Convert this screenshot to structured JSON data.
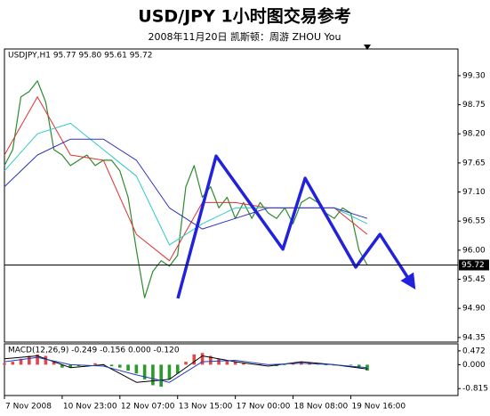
{
  "header": {
    "title": "USD/JPY 1小时图交易参考",
    "subtitle": "2008年11月20日  凯斯顿：周游 ZHOU You"
  },
  "chart_data": [
    {
      "type": "line",
      "label": "USDJPY,H1  95.77 95.80 95.61 95.72",
      "xlim": [
        0,
        165
      ],
      "ylim": [
        94.28,
        99.77
      ],
      "yticks": [
        {
          "value": 99.3,
          "label": "99.30"
        },
        98.75,
        {
          "value": 98.2,
          "label": "98.20"
        },
        97.65,
        {
          "value": 97.1,
          "label": "97.10"
        },
        96.55,
        {
          "value": 96.0,
          "label": "96.00"
        },
        95.45,
        {
          "value": 94.9,
          "label": "94.90"
        },
        94.35
      ],
      "hline": 95.72,
      "hline_color": "#000000",
      "series": [
        {
          "color": "#2e8b2e",
          "width": 1.2,
          "x": [
            0,
            3,
            6,
            9,
            12,
            15,
            18,
            21,
            24,
            27,
            30,
            33,
            36,
            39,
            42,
            45,
            48,
            51,
            54,
            57,
            60,
            63,
            66,
            69,
            72,
            75,
            78,
            81,
            84,
            87,
            90,
            93,
            96,
            99,
            102,
            105,
            108,
            111,
            114,
            117,
            120,
            123,
            126,
            129,
            132
          ],
          "values": [
            97.6,
            97.9,
            98.9,
            99.0,
            99.2,
            98.8,
            97.9,
            97.8,
            97.6,
            97.7,
            97.8,
            97.6,
            97.7,
            97.7,
            97.5,
            97.0,
            96.0,
            95.1,
            95.6,
            95.8,
            95.7,
            95.9,
            97.2,
            97.6,
            97.0,
            97.2,
            96.8,
            97.0,
            96.6,
            96.9,
            96.6,
            96.9,
            96.7,
            96.6,
            96.8,
            96.5,
            96.9,
            97.0,
            96.9,
            96.7,
            96.6,
            96.8,
            96.7,
            96.0,
            95.72
          ]
        },
        {
          "color": "#e03030",
          "width": 1,
          "x": [
            0,
            12,
            24,
            36,
            48,
            60,
            72,
            84,
            96,
            108,
            120,
            132
          ],
          "values": [
            97.8,
            98.9,
            97.8,
            97.7,
            96.3,
            95.8,
            96.9,
            96.9,
            96.8,
            96.8,
            96.8,
            96.3
          ]
        },
        {
          "color": "#30c8c8",
          "width": 1,
          "x": [
            0,
            12,
            24,
            36,
            48,
            60,
            72,
            84,
            96,
            108,
            120,
            132
          ],
          "values": [
            97.5,
            98.2,
            98.4,
            97.9,
            97.4,
            96.1,
            96.5,
            96.8,
            96.8,
            96.8,
            96.8,
            96.5
          ]
        },
        {
          "color": "#3030c0",
          "width": 1,
          "x": [
            0,
            12,
            24,
            36,
            48,
            60,
            72,
            84,
            96,
            108,
            120,
            132
          ],
          "values": [
            97.2,
            97.8,
            98.1,
            98.1,
            97.7,
            96.8,
            96.4,
            96.6,
            96.8,
            96.8,
            96.8,
            96.6
          ]
        },
        {
          "color": "#2222dd",
          "width": 3.5,
          "arrow": true,
          "x": [
            63.1,
            77.0,
            101.3,
            109.4,
            127.8,
            136.6,
            148.0
          ],
          "values": [
            95.09,
            97.78,
            96.02,
            97.36,
            95.68,
            96.3,
            95.38
          ]
        }
      ]
    },
    {
      "type": "macd",
      "label": "MACD(12,26,9) -0.249 -0.156 0.000 -0.120",
      "xlim": [
        0,
        165
      ],
      "ylim": [
        -0.99,
        0.65
      ],
      "yticks": [
        0.472,
        {
          "value": 0,
          "label": "0.000"
        },
        -0.815
      ],
      "xticks": [
        {
          "value": 0,
          "label": "7 Nov 2008"
        },
        {
          "value": 21,
          "label": "10 Nov 23:00"
        },
        {
          "value": 42,
          "label": "12 Nov 07:00"
        },
        {
          "value": 63,
          "label": "13 Nov 15:00"
        },
        {
          "value": 84,
          "label": "17 Nov 00:00"
        },
        {
          "value": 105,
          "label": "18 Nov 08:00"
        },
        {
          "value": 126,
          "label": "19 Nov 16:00"
        }
      ],
      "series": [
        {
          "style": "bar",
          "positive_color": "#e04848",
          "negative_color": "#2a9a2a",
          "x": [
            0,
            3,
            6,
            9,
            12,
            15,
            18,
            21,
            24,
            27,
            30,
            33,
            36,
            39,
            42,
            45,
            48,
            51,
            54,
            57,
            60,
            63,
            66,
            69,
            72,
            75,
            78,
            81,
            84,
            87,
            90,
            93,
            96,
            99,
            102,
            105,
            108,
            111,
            114,
            117,
            120,
            123,
            126,
            129,
            132
          ],
          "values": [
            0.05,
            0.1,
            0.2,
            0.3,
            0.35,
            0.3,
            0.1,
            -0.1,
            -0.1,
            -0.05,
            0,
            0.05,
            0.02,
            -0.05,
            -0.1,
            -0.2,
            -0.3,
            -0.5,
            -0.7,
            -0.75,
            -0.5,
            -0.3,
            0.1,
            0.35,
            0.4,
            0.3,
            0.2,
            0.15,
            0.1,
            0.05,
            0,
            0.02,
            0,
            -0.05,
            -0.02,
            0.05,
            0.1,
            0.08,
            0.02,
            -0.02,
            -0.03,
            0,
            -0.02,
            -0.1,
            -0.2
          ]
        },
        {
          "style": "line",
          "color": "#000000",
          "x": [
            0,
            12,
            24,
            36,
            48,
            60,
            72,
            84,
            96,
            108,
            120,
            132
          ],
          "values": [
            0.2,
            0.3,
            -0.1,
            0.0,
            -0.6,
            -0.5,
            0.3,
            0.1,
            -0.05,
            0.1,
            0.0,
            -0.15
          ]
        },
        {
          "style": "line",
          "color": "#2040c0",
          "x": [
            0,
            12,
            24,
            36,
            48,
            60,
            72,
            84,
            96,
            108,
            120,
            132
          ],
          "values": [
            0.1,
            0.25,
            0.0,
            -0.05,
            -0.35,
            -0.6,
            0.1,
            0.15,
            0.0,
            0.05,
            0.0,
            -0.1
          ]
        }
      ]
    }
  ]
}
